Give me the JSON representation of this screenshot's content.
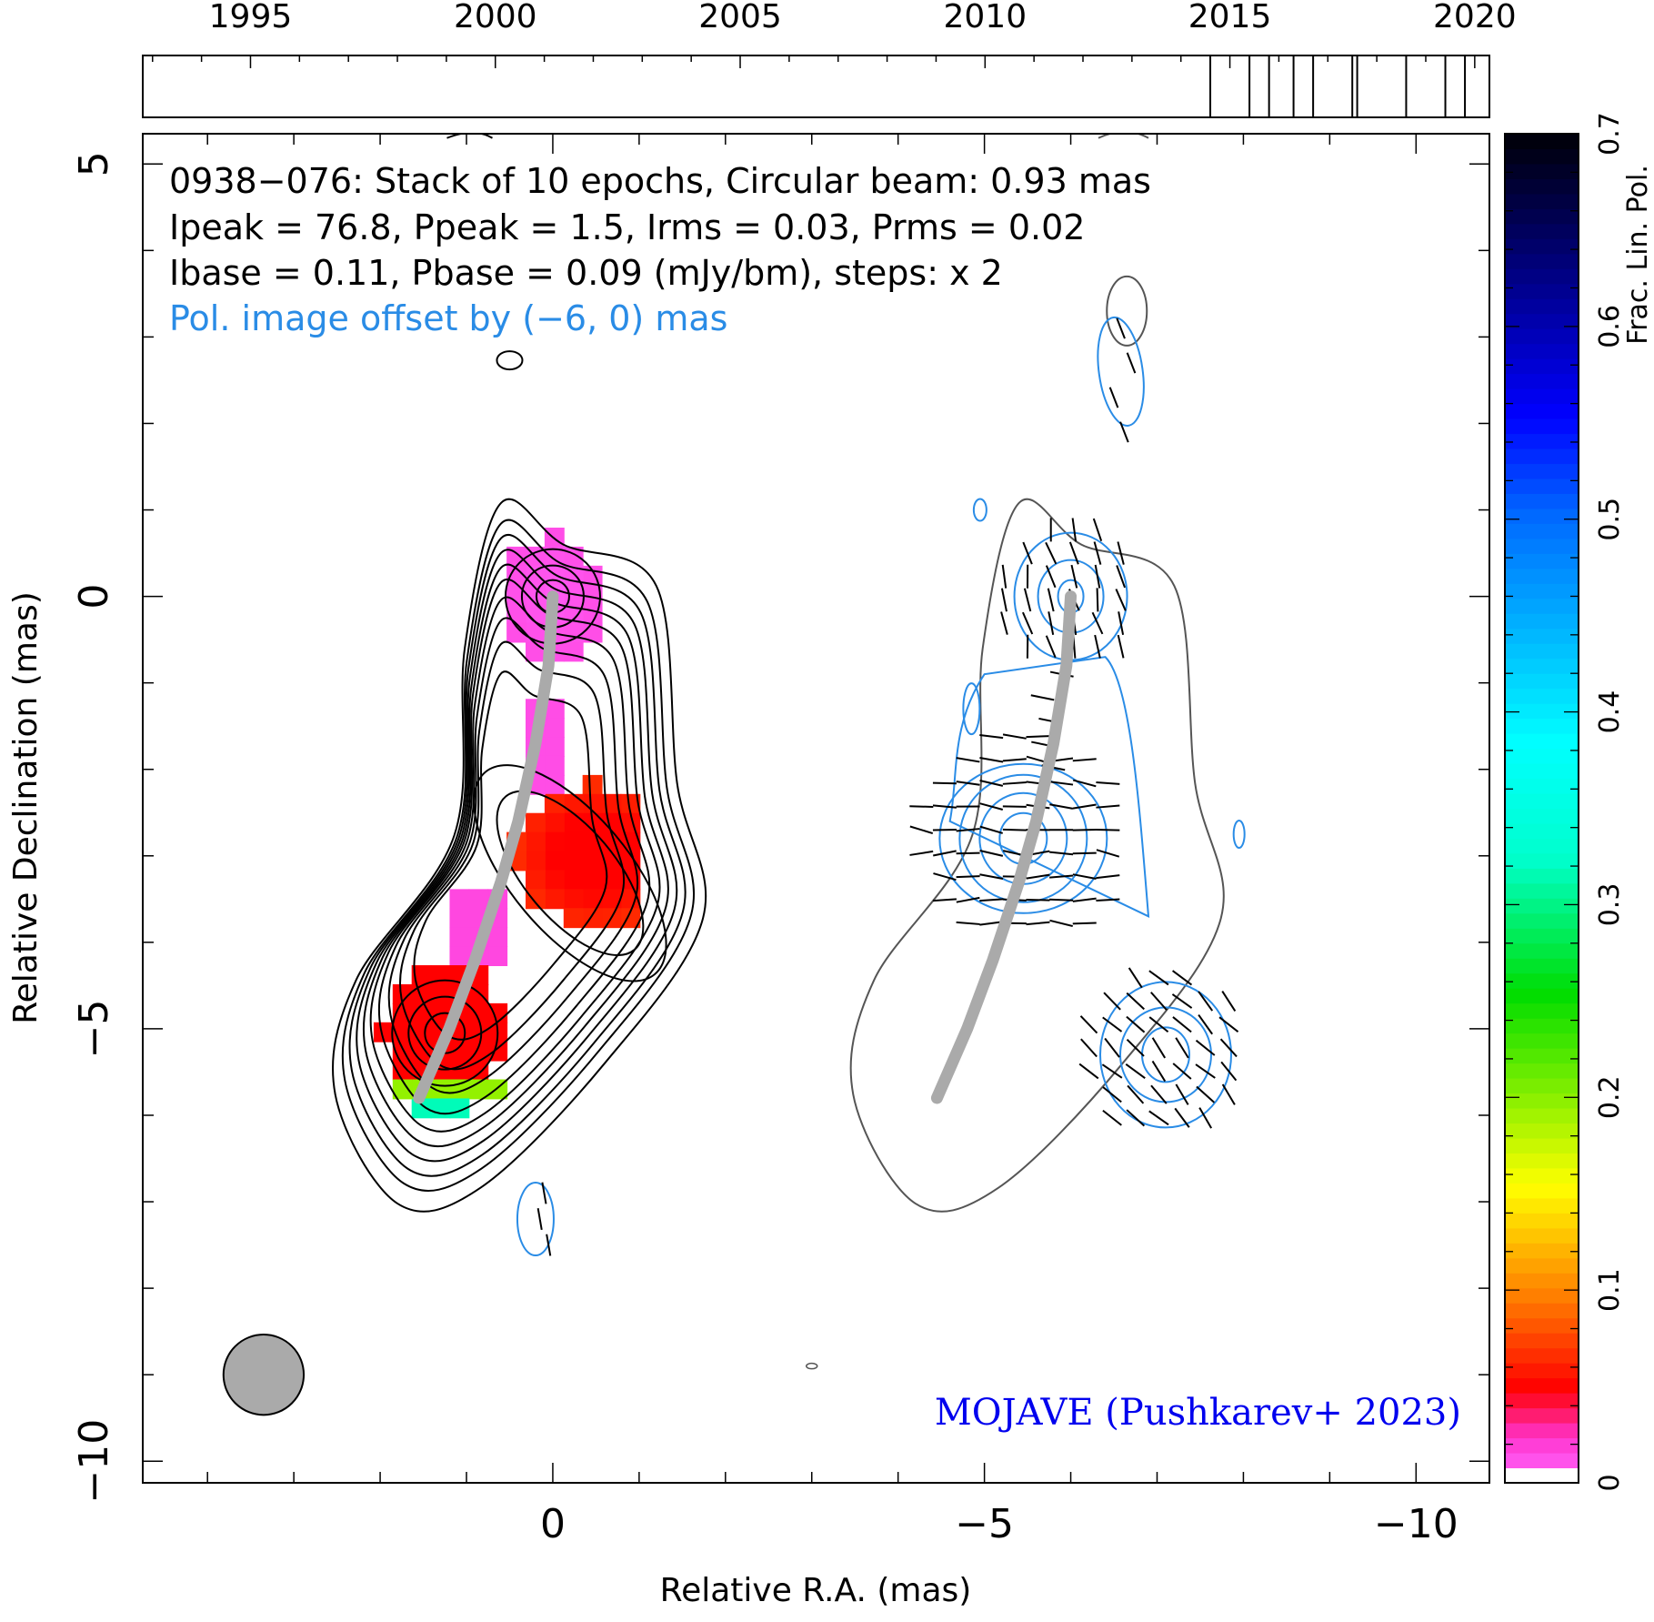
{
  "chart_data": {
    "type": "contour",
    "source": "0938-076",
    "annotations": [
      "0938−076: Stack of 10 epochs, Circular beam: 0.93 mas",
      "Ipeak = 76.8, Ppeak = 1.5, Irms = 0.03, Prms = 0.02",
      "Ibase = 0.11, Pbase = 0.09 (mJy/bm), steps: x 2",
      "Pol. image offset by (−6, 0) mas"
    ],
    "credit": "MOJAVE (Pushkarev+ 2023)",
    "xlabel": "Relative R.A. (mas)",
    "ylabel": "Relative Declination (mas)",
    "colorbar_label": "Frac. Lin. Pol.",
    "xlim": [
      4.75,
      -10.85
    ],
    "ylim": [
      -10.25,
      5.35
    ],
    "x_ticks": [
      {
        "value": 0,
        "label": "0"
      },
      {
        "value": -5,
        "label": "−5"
      },
      {
        "value": -10,
        "label": "−10"
      }
    ],
    "y_ticks": [
      {
        "value": 5,
        "label": "5"
      },
      {
        "value": 0,
        "label": "0"
      },
      {
        "value": -5,
        "label": "−5"
      },
      {
        "value": -10,
        "label": "−10"
      }
    ],
    "timeline": {
      "range": [
        1992.8,
        2020.3
      ],
      "tick_labels": [
        "1995",
        "2000",
        "2005",
        "2010",
        "2015",
        "2020"
      ],
      "tick_values": [
        1995,
        2000,
        2005,
        2010,
        2015,
        2020
      ],
      "epochs": [
        2014.6,
        2015.4,
        2015.8,
        2016.3,
        2016.7,
        2017.5,
        2017.6,
        2018.6,
        2019.4,
        2019.8
      ]
    },
    "colorbar": {
      "range": [
        0,
        0.7
      ],
      "tick_values": [
        0,
        0.1,
        0.2,
        0.3,
        0.4,
        0.5,
        0.6,
        0.7
      ],
      "tick_labels": [
        "0",
        "0.1",
        "0.2",
        "0.3",
        "0.4",
        "0.5",
        "0.6",
        "0.7"
      ],
      "stops": [
        {
          "v": 0.0,
          "c": "#ff66ff"
        },
        {
          "v": 0.02,
          "c": "#ff33cc"
        },
        {
          "v": 0.045,
          "c": "#ff0000"
        },
        {
          "v": 0.09,
          "c": "#ff7700"
        },
        {
          "v": 0.15,
          "c": "#ffff00"
        },
        {
          "v": 0.25,
          "c": "#00dd00"
        },
        {
          "v": 0.32,
          "c": "#00ffcc"
        },
        {
          "v": 0.38,
          "c": "#00ffff"
        },
        {
          "v": 0.5,
          "c": "#0066ff"
        },
        {
          "v": 0.55,
          "c": "#0000ff"
        },
        {
          "v": 0.62,
          "c": "#000088"
        },
        {
          "v": 0.7,
          "c": "#000000"
        }
      ]
    },
    "ridge_line": [
      [
        0,
        0
      ],
      [
        0.05,
        -0.8
      ],
      [
        0.2,
        -1.7
      ],
      [
        0.4,
        -2.6
      ],
      [
        0.6,
        -3.3
      ],
      [
        0.9,
        -4.2
      ],
      [
        1.2,
        -5.0
      ],
      [
        1.55,
        -5.8
      ]
    ],
    "components": [
      {
        "x": 0.0,
        "y": 0.0,
        "fpol": 0.01
      },
      {
        "x": -0.5,
        "y": -3.0,
        "fpol": 0.05
      },
      {
        "x": 1.25,
        "y": -5.05,
        "fpol": 0.045
      }
    ],
    "beam_fwhm_mas": 0.93,
    "colors": {
      "stokes_i_contour": "#000000",
      "pol_contour": "#2a8ce6",
      "ridge": "#aaaaaa",
      "total_outline_offset": "#555555",
      "annotation_blue": "#2a8ce6",
      "credit": "#0000ee"
    }
  }
}
